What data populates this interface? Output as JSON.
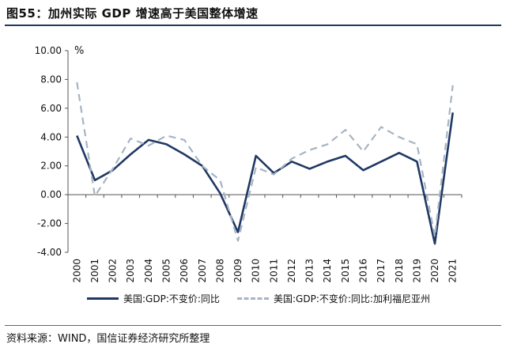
{
  "figure": {
    "title": "图55：加州实际 GDP 增速高于美国整体增速",
    "source": "资料来源：WIND，国信证券经济研究所整理"
  },
  "chart_data": {
    "type": "line",
    "unit_label": "%",
    "categories": [
      "2000",
      "2001",
      "2002",
      "2003",
      "2004",
      "2005",
      "2006",
      "2007",
      "2008",
      "2009",
      "2010",
      "2011",
      "2012",
      "2013",
      "2014",
      "2015",
      "2016",
      "2017",
      "2018",
      "2019",
      "2020",
      "2021"
    ],
    "y_ticks": [
      "10.00",
      "8.00",
      "6.00",
      "4.00",
      "2.00",
      "0.00",
      "-2.00",
      "-4.00"
    ],
    "ylim": [
      -4,
      10
    ],
    "grid": false,
    "legend_position": "bottom",
    "series": [
      {
        "name": "美国:GDP:不变价:同比",
        "style": "solid",
        "color": "#1f3864",
        "values": [
          4.1,
          1.0,
          1.7,
          2.8,
          3.8,
          3.5,
          2.8,
          2.0,
          0.1,
          -2.6,
          2.7,
          1.5,
          2.3,
          1.8,
          2.3,
          2.7,
          1.7,
          2.3,
          2.9,
          2.3,
          -3.4,
          5.7
        ]
      },
      {
        "name": "美国:GDP:不变价:同比:加利福尼亚州",
        "style": "dashed",
        "color": "#a6b4c4",
        "values": [
          7.8,
          -0.1,
          1.8,
          3.9,
          3.4,
          4.1,
          3.8,
          2.0,
          1.0,
          -3.2,
          1.9,
          1.4,
          2.5,
          3.1,
          3.5,
          4.5,
          3.0,
          4.7,
          4.0,
          3.5,
          -2.9,
          7.6
        ]
      }
    ]
  }
}
